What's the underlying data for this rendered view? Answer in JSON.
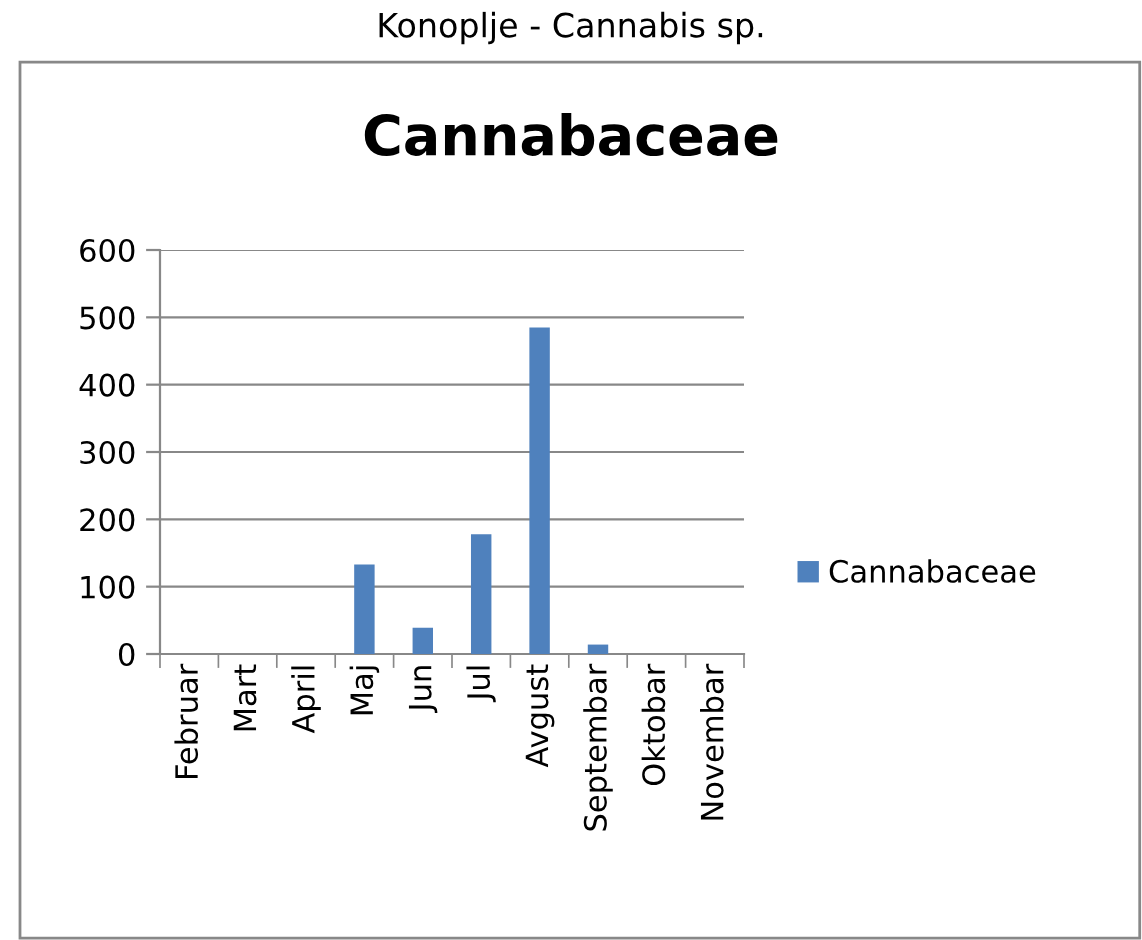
{
  "chart_data": {
    "type": "bar",
    "title": "Cannabaceae",
    "annotations": [
      "Konoplje - Cannabis sp."
    ],
    "categories": [
      "Februar",
      "Mart",
      "April",
      "Maj",
      "Jun",
      "Jul",
      "Avgust",
      "Septembar",
      "Oktobar",
      "Novembar"
    ],
    "series": [
      {
        "name": "Cannabaceae",
        "color": "#4f81bd",
        "values": [
          0,
          0,
          0,
          133,
          39,
          178,
          485,
          14,
          0,
          0
        ]
      }
    ],
    "ylim": [
      0,
      600
    ],
    "yticks": [
      0,
      100,
      200,
      300,
      400,
      500,
      600
    ],
    "grid": "y",
    "legend": "right"
  }
}
